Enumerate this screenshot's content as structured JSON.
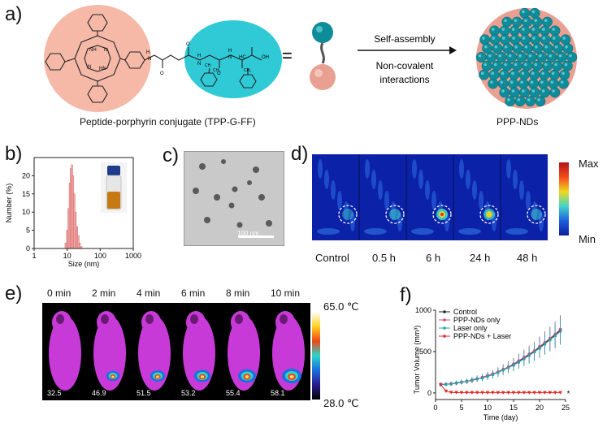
{
  "panels": {
    "a": {
      "label": "a)",
      "conjugate_caption": "Peptide-porphyrin conjugate (TPP-G-FF)",
      "equals": "=",
      "arrow_top": "Self-assembly",
      "arrow_bottom_1": "Non-covalent",
      "arrow_bottom_2": "interactions",
      "nd_caption": "PPP-NDs",
      "chem_labels": {
        "nh1": "NH",
        "nh2": "HN",
        "n1": "N",
        "n2": "N",
        "amide_h1": "H",
        "amide_n1": "N",
        "amide_o1": "O",
        "amide_o2": "O",
        "amide_h2": "H",
        "amide_n2": "N",
        "amide_o3": "O",
        "amide_h3": "H",
        "amide_n3": "N",
        "hc": "HC",
        "ch2a": "CH₂",
        "ch2b": "CH₂",
        "ch": "CH",
        "oh": "OH"
      },
      "colors": {
        "porphyrin_blob": "#f6b9a8",
        "peptide_blob": "#30c9d6",
        "sphere_teal": "#0f8c99",
        "sphere_pink": "#e9a092"
      }
    },
    "b": {
      "label": "b)",
      "ylabel": "Number (%)",
      "xlabel": "Size (nm)"
    },
    "c": {
      "label": "c)",
      "scalebar": "100 nm"
    },
    "d": {
      "label": "d)",
      "colorbar_max": "Max",
      "colorbar_min": "Min",
      "timepoints": [
        "Control",
        "0.5 h",
        "6 h",
        "24 h",
        "48 h"
      ]
    },
    "e": {
      "label": "e)",
      "times": [
        "0 min",
        "2 min",
        "4 min",
        "6 min",
        "8 min",
        "10 min"
      ],
      "temps": [
        "32.5",
        "46.9",
        "51.5",
        "53.2",
        "55.4",
        "58.1"
      ],
      "scale_max": "65.0  ℃",
      "scale_min": "28.0  ℃"
    },
    "f": {
      "label": "f)"
    }
  },
  "chart_data": [
    {
      "panel": "b",
      "type": "bar",
      "xscale": "log",
      "xlim": [
        1,
        1000
      ],
      "ylim": [
        0,
        25
      ],
      "xticks": [
        1,
        10,
        100,
        1000
      ],
      "yticks": [
        0,
        5,
        10,
        15,
        20
      ],
      "xlabel": "Size (nm)",
      "ylabel": "Number (%)",
      "x": [
        9,
        10,
        11,
        12,
        13,
        14,
        15,
        16.5,
        18,
        20,
        22,
        24,
        27
      ],
      "values": [
        1.5,
        5,
        11,
        18,
        22,
        23,
        20,
        15,
        10,
        6,
        3.5,
        1.5,
        0.5
      ]
    },
    {
      "panel": "f",
      "type": "line",
      "xlabel": "Time (day)",
      "ylabel": "Tumor Volume (mm³)",
      "xlim": [
        0,
        25
      ],
      "ylim": [
        -80,
        1000
      ],
      "xticks": [
        0,
        5,
        10,
        15,
        20,
        25
      ],
      "yticks": [
        0,
        500,
        1000
      ],
      "legend_position": "top-left",
      "annotation": "*",
      "x": [
        1,
        2,
        3,
        4,
        5,
        6,
        7,
        8,
        9,
        10,
        11,
        12,
        13,
        14,
        15,
        16,
        17,
        18,
        19,
        20,
        21,
        22,
        23,
        24
      ],
      "series": [
        {
          "name": "Control",
          "color": "#222222",
          "values": [
            100,
            105,
            110,
            120,
            130,
            140,
            155,
            170,
            185,
            205,
            225,
            250,
            280,
            310,
            340,
            380,
            420,
            460,
            500,
            550,
            600,
            650,
            700,
            760
          ]
        },
        {
          "name": "PPP-NDs only",
          "color": "#c2507a",
          "values": [
            100,
            104,
            112,
            118,
            128,
            142,
            150,
            168,
            190,
            210,
            230,
            255,
            285,
            315,
            350,
            390,
            430,
            470,
            510,
            560,
            610,
            660,
            710,
            770
          ]
        },
        {
          "name": "Laser only",
          "color": "#27a3b0",
          "values": [
            100,
            106,
            108,
            122,
            134,
            138,
            158,
            175,
            180,
            200,
            222,
            248,
            276,
            305,
            335,
            372,
            412,
            452,
            495,
            540,
            590,
            640,
            690,
            745
          ]
        },
        {
          "name": "PPP-NDs + Laser",
          "color": "#e02a2a",
          "values": [
            100,
            20,
            5,
            3,
            2,
            2,
            2,
            2,
            2,
            2,
            2,
            2,
            2,
            2,
            2,
            2,
            2,
            2,
            2,
            2,
            2,
            2,
            2,
            2
          ]
        }
      ]
    }
  ]
}
